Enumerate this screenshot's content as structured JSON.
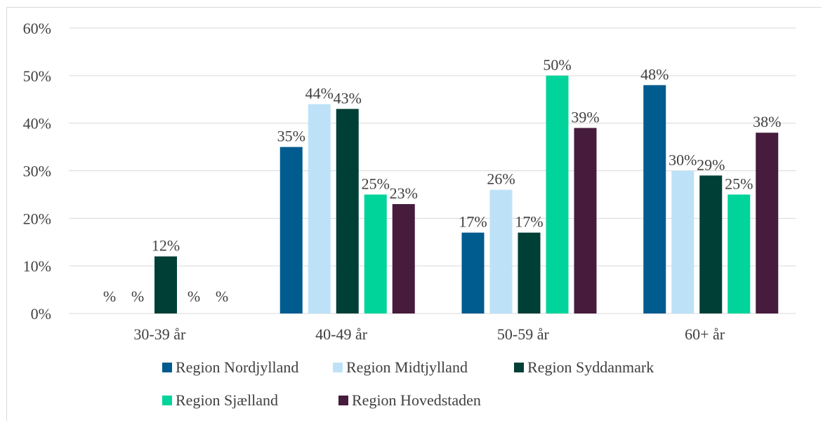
{
  "chart_data": {
    "type": "bar",
    "title": "",
    "xlabel": "",
    "ylabel": "",
    "categories": [
      "30-39 år",
      "40-49 år",
      "50-59 år",
      "60+ år"
    ],
    "y_ticks": [
      "0%",
      "10%",
      "20%",
      "30%",
      "40%",
      "50%",
      "60%"
    ],
    "ylim": [
      0,
      60
    ],
    "grid": true,
    "legend_position": "bottom",
    "series": [
      {
        "name": "Region Nordjylland",
        "color": "#005b8f",
        "values": [
          0,
          35,
          17,
          48
        ],
        "labels": [
          "%",
          "35%",
          "17%",
          "48%"
        ]
      },
      {
        "name": "Region Midtjylland",
        "color": "#bde2f7",
        "values": [
          0,
          44,
          26,
          30
        ],
        "labels": [
          "%",
          "44%",
          "26%",
          "30%"
        ]
      },
      {
        "name": "Region Syddanmark",
        "color": "#003f36",
        "values": [
          12,
          43,
          17,
          29
        ],
        "labels": [
          "12%",
          "43%",
          "17%",
          "29%"
        ]
      },
      {
        "name": "Region Sjælland",
        "color": "#00d49a",
        "values": [
          0,
          25,
          50,
          25
        ],
        "labels": [
          "%",
          "25%",
          "50%",
          "25%"
        ]
      },
      {
        "name": "Region Hovedstaden",
        "color": "#461b3c",
        "values": [
          0,
          23,
          39,
          38
        ],
        "labels": [
          "%",
          "23%",
          "39%",
          "38%"
        ]
      }
    ]
  }
}
